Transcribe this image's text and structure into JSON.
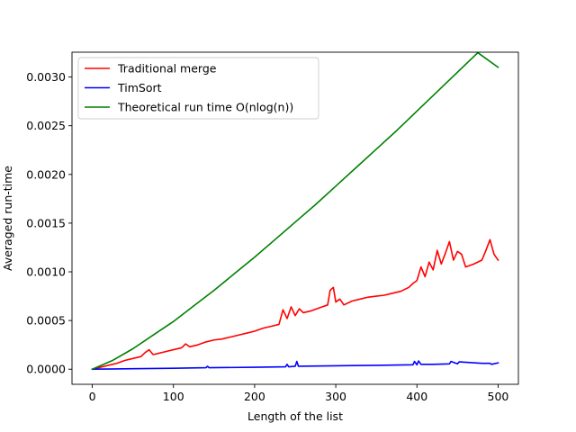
{
  "chart_data": {
    "type": "line",
    "title": "",
    "xlabel": "Length of the list",
    "ylabel": "Averaged run-time",
    "xlim": [
      -25,
      525
    ],
    "ylim": [
      -0.000155,
      0.003255
    ],
    "xticks": [
      0,
      100,
      200,
      300,
      400,
      500
    ],
    "xtick_labels": [
      "0",
      "100",
      "200",
      "300",
      "400",
      "500"
    ],
    "yticks": [
      0,
      0.0005,
      0.001,
      0.0015,
      0.002,
      0.0025,
      0.003
    ],
    "ytick_labels": [
      "0.0000",
      "0.0005",
      "0.0010",
      "0.0015",
      "0.0020",
      "0.0025",
      "0.0030"
    ],
    "grid": false,
    "legend_position": "top-left",
    "series": [
      {
        "name": "Traditional merge",
        "color": "#ff0000",
        "x": [
          0,
          10,
          20,
          30,
          40,
          50,
          60,
          65,
          70,
          75,
          80,
          90,
          100,
          110,
          115,
          120,
          130,
          140,
          150,
          160,
          170,
          180,
          190,
          200,
          210,
          220,
          230,
          235,
          240,
          245,
          250,
          255,
          260,
          270,
          280,
          290,
          293,
          297,
          300,
          305,
          310,
          320,
          330,
          340,
          350,
          360,
          370,
          380,
          390,
          395,
          400,
          405,
          410,
          415,
          420,
          425,
          430,
          435,
          440,
          445,
          450,
          455,
          460,
          470,
          480,
          485,
          490,
          495,
          500
        ],
        "y": [
          0.0,
          2e-05,
          4e-05,
          6e-05,
          9e-05,
          0.00011,
          0.00013,
          0.00017,
          0.0002,
          0.00015,
          0.00016,
          0.00018,
          0.0002,
          0.00022,
          0.00026,
          0.00023,
          0.00025,
          0.00028,
          0.0003,
          0.00031,
          0.00033,
          0.00035,
          0.00037,
          0.00039,
          0.00042,
          0.00044,
          0.00046,
          0.00061,
          0.00052,
          0.00064,
          0.00055,
          0.00062,
          0.00058,
          0.0006,
          0.00063,
          0.00066,
          0.00081,
          0.00084,
          0.00069,
          0.00072,
          0.00066,
          0.0007,
          0.00072,
          0.00074,
          0.00075,
          0.00076,
          0.00078,
          0.0008,
          0.00084,
          0.00088,
          0.00091,
          0.00105,
          0.00095,
          0.0011,
          0.00102,
          0.00122,
          0.00108,
          0.00119,
          0.00131,
          0.00112,
          0.00121,
          0.00118,
          0.00105,
          0.00108,
          0.00112,
          0.00122,
          0.00133,
          0.00118,
          0.00112
        ]
      },
      {
        "name": "TimSort",
        "color": "#0000ff",
        "x": [
          0,
          50,
          100,
          140,
          142,
          144,
          200,
          238,
          240,
          242,
          250,
          252,
          254,
          300,
          350,
          395,
          397,
          400,
          402,
          405,
          420,
          440,
          442,
          450,
          452,
          480,
          490,
          492,
          500
        ],
        "y": [
          0.0,
          5e-06,
          1e-05,
          1.5e-05,
          3e-05,
          1.5e-05,
          2e-05,
          2.5e-05,
          5e-05,
          2.5e-05,
          3e-05,
          8e-05,
          3e-05,
          3.5e-05,
          4e-05,
          4.5e-05,
          8e-05,
          4.5e-05,
          8.5e-05,
          5e-05,
          5e-05,
          5.5e-05,
          8e-05,
          5.5e-05,
          7.5e-05,
          6e-05,
          6e-05,
          5e-05,
          6.5e-05
        ]
      },
      {
        "name": "Theoretical run time O(nlog(n))",
        "color": "#008000",
        "x": [
          0,
          25,
          50,
          75,
          100,
          125,
          150,
          175,
          200,
          225,
          250,
          275,
          300,
          325,
          350,
          375,
          400,
          425,
          450,
          475,
          500
        ],
        "y": [
          0.0,
          9e-05,
          0.00021,
          0.00035,
          0.00049,
          0.00065,
          0.00081,
          0.00098,
          0.00115,
          0.00133,
          0.00151,
          0.00169,
          0.00188,
          0.00207,
          0.00226,
          0.00245,
          0.00265,
          0.00285,
          0.00305,
          0.00325,
          0.0031
        ]
      }
    ]
  }
}
